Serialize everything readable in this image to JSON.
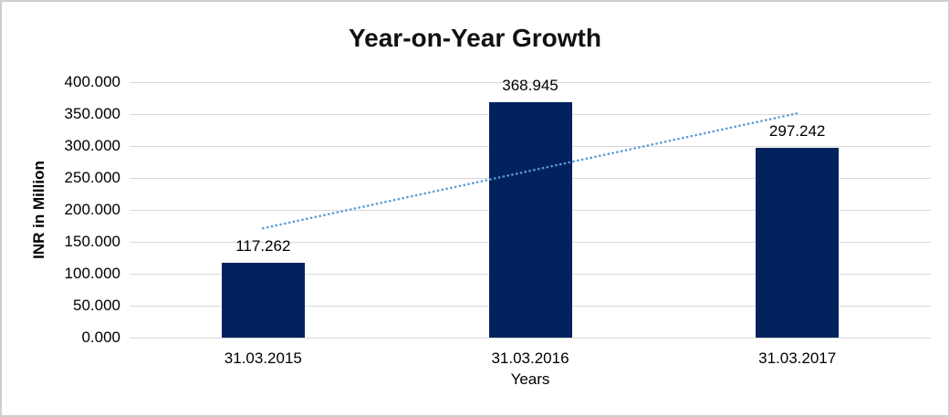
{
  "chart_data": {
    "type": "bar",
    "title": "Year-on-Year Growth",
    "categories": [
      "31.03.2015",
      "31.03.2016",
      "31.03.2017"
    ],
    "values": [
      117.262,
      368.945,
      297.242
    ],
    "data_labels": [
      "117.262",
      "368.945",
      "297.242"
    ],
    "xlabel": "Years",
    "ylabel": "INR in Million",
    "ylim": [
      0,
      400
    ],
    "ytick_step": 50,
    "ytick_labels": [
      "0.000",
      "50.000",
      "100.000",
      "150.000",
      "200.000",
      "250.000",
      "300.000",
      "350.000",
      "400.000"
    ],
    "grid": true,
    "legend": false,
    "trendline": {
      "type": "linear",
      "style": "dotted",
      "start_value": 171.2,
      "end_value": 351.1,
      "color": "#5B9BD5"
    },
    "colors": {
      "bar": "#02225E",
      "gridline": "#D9D9D9",
      "text": "#000000",
      "frame_border": "#CFCFCF"
    }
  }
}
